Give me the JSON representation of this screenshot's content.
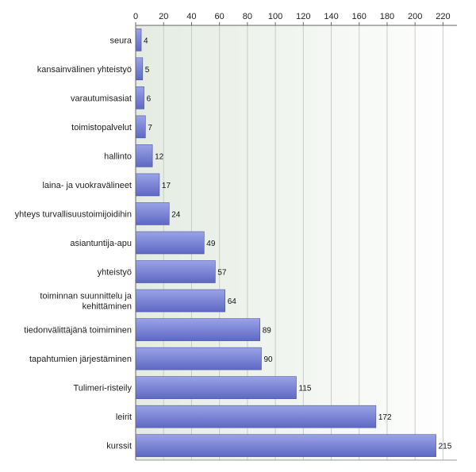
{
  "chart_data": {
    "type": "bar",
    "orientation": "horizontal",
    "categories": [
      "seura",
      "kansainvälinen yhteistyö",
      "varautumisasiat",
      "toimistopalvelut",
      "hallinto",
      "laina- ja vuokravälineet",
      "yhteys turvallisuustoimijoidihin",
      "asiantuntija-apu",
      "yhteistyö",
      "toiminnan suunnittelu ja kehittäminen",
      "tiedonvälittäjänä toimiminen",
      "tapahtumien järjestäminen",
      "Tulimeri-risteily",
      "leirit",
      "kurssit"
    ],
    "category_lines": [
      [
        "seura"
      ],
      [
        "kansainvälinen yhteistyö"
      ],
      [
        "varautumisasiat"
      ],
      [
        "toimistopalvelut"
      ],
      [
        "hallinto"
      ],
      [
        "laina- ja vuokravälineet"
      ],
      [
        "yhteys turvallisuustoimijoidihin"
      ],
      [
        "asiantuntija-apu"
      ],
      [
        "yhteistyö"
      ],
      [
        "toiminnan suunnittelu ja",
        "kehittäminen"
      ],
      [
        "tiedonvälittäjänä toimiminen"
      ],
      [
        "tapahtumien järjestäminen"
      ],
      [
        "Tulimeri-risteily"
      ],
      [
        "leirit"
      ],
      [
        "kurssit"
      ]
    ],
    "values": [
      4,
      5,
      6,
      7,
      12,
      17,
      24,
      49,
      57,
      64,
      89,
      90,
      115,
      172,
      215
    ],
    "xlim": [
      0,
      230
    ],
    "xticks": [
      0,
      20,
      40,
      60,
      80,
      100,
      120,
      140,
      160,
      180,
      200,
      220
    ],
    "tick_position": "top",
    "grid": true,
    "title": "",
    "xlabel": "",
    "ylabel": "",
    "colors": {
      "bar_top": "#9aa3e6",
      "bar_bottom": "#5e68c4",
      "bar_stroke": "#4a54a8",
      "bg_left": "#e4ece2",
      "bg_right": "#ffffff",
      "grid": "#c8ccc8",
      "axis": "#666666"
    }
  }
}
